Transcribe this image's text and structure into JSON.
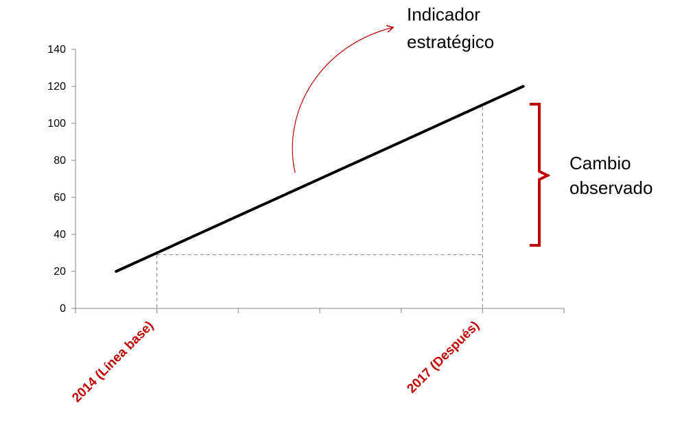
{
  "chart_data": {
    "type": "line",
    "title": "",
    "xlabel": "",
    "ylabel": "",
    "ylim": [
      0,
      140
    ],
    "y_ticks": [
      0,
      20,
      40,
      60,
      80,
      100,
      120,
      140
    ],
    "x_axis_divisions": 6,
    "grid": false,
    "legend": "none",
    "series": [
      {
        "x": [
          0.5,
          5.5
        ],
        "values": [
          20,
          120
        ]
      }
    ],
    "reference_lines": {
      "baseline": {
        "x": 1,
        "y": 29
      },
      "after": {
        "x": 5,
        "y": 109
      }
    },
    "category_labels": [
      {
        "text": "2014 (Línea base)",
        "x": 1
      },
      {
        "text": "2017 (Después)",
        "x": 5
      }
    ],
    "annotations": {
      "indicator": [
        "Indicador",
        "estratégico"
      ],
      "change": [
        "Cambio",
        "observado"
      ]
    },
    "colors": {
      "line": "#000000",
      "accent": "#c00000",
      "axis": "#868686",
      "dashed": "#8c8c8c"
    }
  }
}
